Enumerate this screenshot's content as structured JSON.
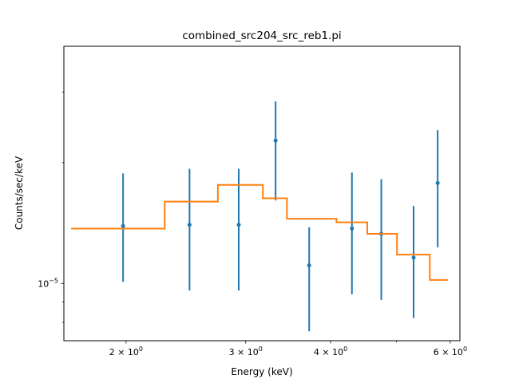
{
  "chart_data": {
    "type": "scatter",
    "title": "combined_src204_src_reb1.pi",
    "xlabel": "Energy (keV)",
    "ylabel": "Counts/sec/keV",
    "xscale": "log",
    "yscale": "log",
    "xlim": [
      1.62,
      6.2
    ],
    "ylim": [
      7.2e-06,
      3.9e-05
    ],
    "x_ticks": [
      {
        "value": 2,
        "label": "2 × 10",
        "exp": "0"
      },
      {
        "value": 3,
        "label": "3 × 10",
        "exp": "0"
      },
      {
        "value": 4,
        "label": "4 × 10",
        "exp": "0"
      },
      {
        "value": 6,
        "label": "6 × 10",
        "exp": "0"
      }
    ],
    "y_ticks": [
      {
        "value": 1e-05,
        "label": "10",
        "exp": "−5"
      }
    ],
    "series": [
      {
        "kind": "data",
        "color": "#1f77b4",
        "points": [
          {
            "x": 1.98,
            "y": 1.39e-05,
            "ylo": 1.01e-05,
            "yhi": 1.88e-05
          },
          {
            "x": 2.48,
            "y": 1.4e-05,
            "ylo": 9.6e-06,
            "yhi": 1.93e-05
          },
          {
            "x": 2.93,
            "y": 1.4e-05,
            "ylo": 9.6e-06,
            "yhi": 1.93e-05
          },
          {
            "x": 3.32,
            "y": 2.27e-05,
            "ylo": 1.61e-05,
            "yhi": 2.84e-05
          },
          {
            "x": 3.72,
            "y": 1.11e-05,
            "ylo": 7.6e-06,
            "yhi": 1.38e-05
          },
          {
            "x": 4.3,
            "y": 1.37e-05,
            "ylo": 9.4e-06,
            "yhi": 1.89e-05
          },
          {
            "x": 4.75,
            "y": 1.33e-05,
            "ylo": 9.1e-06,
            "yhi": 1.82e-05
          },
          {
            "x": 5.3,
            "y": 1.16e-05,
            "ylo": 8.2e-06,
            "yhi": 1.56e-05
          },
          {
            "x": 5.75,
            "y": 1.78e-05,
            "ylo": 1.23e-05,
            "yhi": 2.41e-05
          }
        ]
      },
      {
        "kind": "model",
        "color": "#ff7f0e",
        "steps": [
          {
            "x0": 1.66,
            "x1": 2.28,
            "y": 1.37e-05
          },
          {
            "x0": 2.28,
            "x1": 2.73,
            "y": 1.6e-05
          },
          {
            "x0": 2.73,
            "x1": 3.18,
            "y": 1.76e-05
          },
          {
            "x0": 3.18,
            "x1": 3.45,
            "y": 1.63e-05
          },
          {
            "x0": 3.45,
            "x1": 4.08,
            "y": 1.45e-05
          },
          {
            "x0": 4.08,
            "x1": 4.53,
            "y": 1.42e-05
          },
          {
            "x0": 4.53,
            "x1": 5.01,
            "y": 1.33e-05
          },
          {
            "x0": 5.01,
            "x1": 5.6,
            "y": 1.18e-05
          },
          {
            "x0": 5.6,
            "x1": 5.95,
            "y": 1.02e-05
          }
        ]
      }
    ]
  }
}
